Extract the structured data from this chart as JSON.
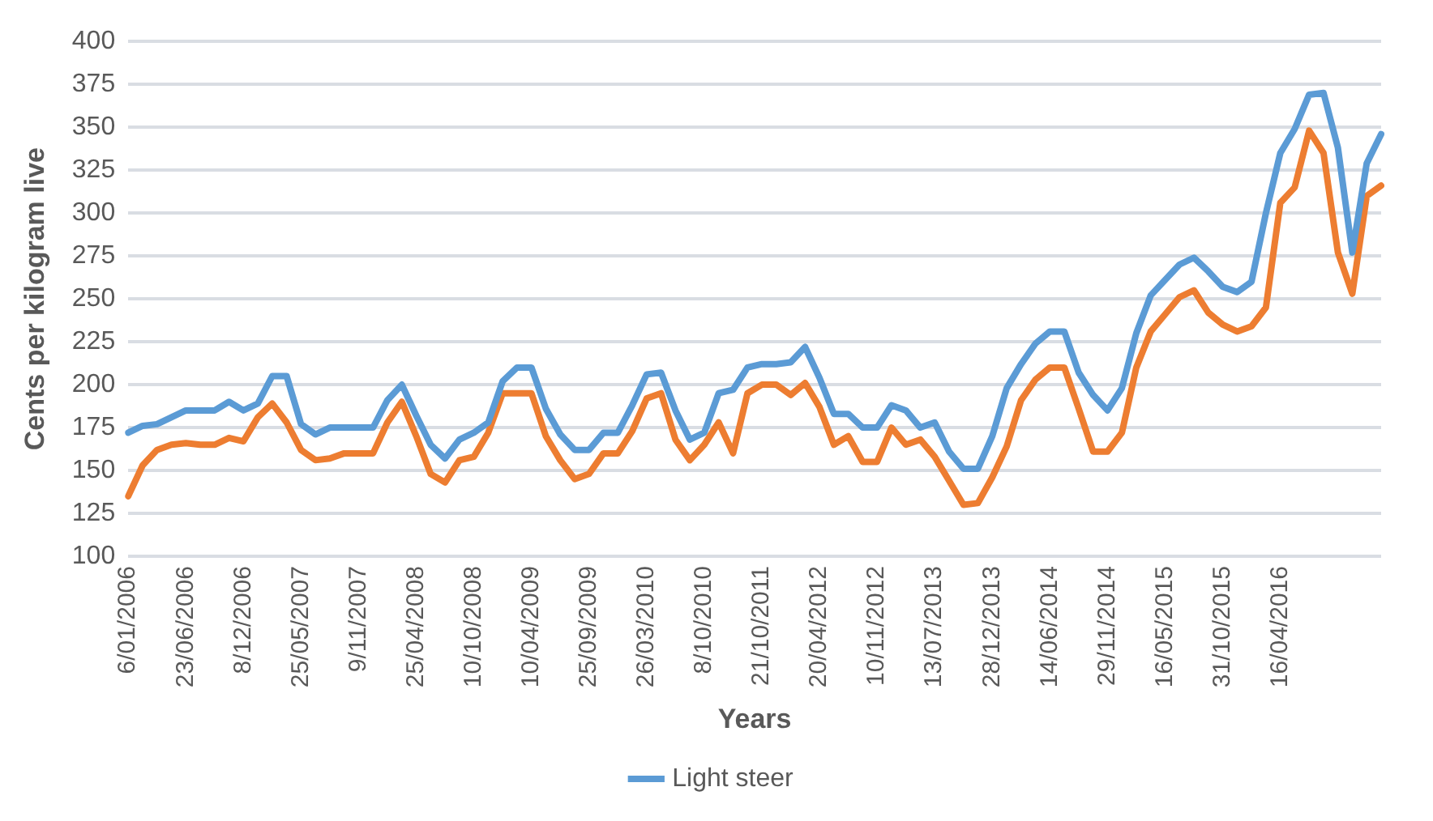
{
  "chart_data": {
    "type": "line",
    "xlabel": "Years",
    "ylabel": "Cents per kilogram live",
    "categories": [
      "6/01/2006",
      null,
      null,
      null,
      "23/06/2006",
      null,
      null,
      null,
      "8/12/2006",
      null,
      null,
      null,
      "25/05/2007",
      null,
      null,
      null,
      "9/11/2007",
      null,
      null,
      null,
      "25/04/2008",
      null,
      null,
      null,
      "10/10/2008",
      null,
      null,
      null,
      "10/04/2009",
      null,
      null,
      null,
      "25/09/2009",
      null,
      null,
      null,
      "26/03/2010",
      null,
      null,
      null,
      "8/10/2010",
      null,
      null,
      null,
      "21/10/2011",
      null,
      null,
      null,
      "20/04/2012",
      null,
      null,
      null,
      "10/11/2012",
      null,
      null,
      null,
      "13/07/2013",
      null,
      null,
      null,
      "28/12/2013",
      null,
      null,
      null,
      "14/06/2014",
      null,
      null,
      null,
      "29/11/2014",
      null,
      null,
      null,
      "16/05/2015",
      null,
      null,
      null,
      "31/10/2015",
      null,
      null,
      null,
      "16/04/2016",
      null,
      null,
      null,
      null,
      null,
      null,
      null
    ],
    "series": [
      {
        "name": "Light steer",
        "color": "#5b9bd5",
        "values": [
          172,
          176,
          177,
          181,
          185,
          185,
          185,
          190,
          185,
          189,
          205,
          205,
          177,
          171,
          175,
          175,
          175,
          175,
          191,
          200,
          182,
          165,
          157,
          168,
          172,
          178,
          202,
          210,
          210,
          186,
          171,
          162,
          162,
          172,
          172,
          188,
          206,
          207,
          185,
          168,
          172,
          195,
          197,
          210,
          212,
          212,
          213,
          222,
          204,
          183,
          183,
          175,
          175,
          188,
          185,
          175,
          178,
          161,
          151,
          151,
          170,
          198,
          212,
          224,
          231,
          231,
          207,
          194,
          185,
          198,
          230,
          252,
          261,
          270,
          274,
          266,
          257,
          254,
          260,
          300,
          335,
          349,
          369,
          370,
          338,
          277,
          329,
          346
        ]
      },
      {
        "color": "#ed7d31",
        "values": [
          135,
          153,
          162,
          165,
          166,
          165,
          165,
          169,
          167,
          181,
          189,
          178,
          162,
          156,
          157,
          160,
          160,
          160,
          178,
          190,
          170,
          148,
          143,
          156,
          158,
          172,
          195,
          195,
          195,
          170,
          156,
          145,
          148,
          160,
          160,
          173,
          192,
          195,
          168,
          156,
          165,
          178,
          160,
          195,
          200,
          200,
          194,
          201,
          187,
          165,
          170,
          155,
          155,
          175,
          165,
          168,
          158,
          144,
          130,
          131,
          146,
          164,
          191,
          203,
          210,
          210,
          186,
          161,
          161,
          172,
          210,
          231,
          241,
          251,
          255,
          242,
          235,
          231,
          234,
          245,
          306,
          315,
          348,
          335,
          277,
          253,
          310,
          316
        ]
      }
    ],
    "ylim": [
      100,
      400
    ],
    "yticks": [
      100,
      125,
      150,
      175,
      200,
      225,
      250,
      275,
      300,
      325,
      350,
      375,
      400
    ],
    "grid": "y",
    "legend": "bottom",
    "marker": "none",
    "line_style": "solid"
  }
}
